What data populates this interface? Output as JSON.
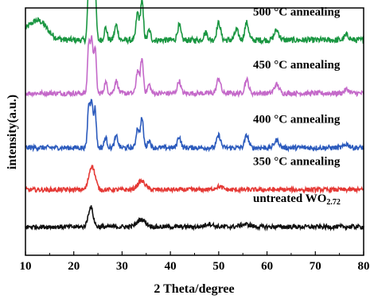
{
  "chart_data": {
    "type": "line",
    "title": "",
    "xlabel": "2 Theta/degree",
    "ylabel": "intensity(a.u.)",
    "xlim": [
      10,
      80
    ],
    "xticks": [
      "10",
      "20",
      "30",
      "40",
      "50",
      "60",
      "70",
      "80"
    ],
    "y_ticks_shown": false,
    "grid": false,
    "legend": "inline labels at right of each curve",
    "series": [
      {
        "name": "500 °C annealing",
        "label_main": "500 °C annealing",
        "label_sub": "",
        "color": "#1a9641",
        "baseline": 0.87,
        "noise": 0.012,
        "peaks": [
          [
            11.5,
            0.05,
            2.5
          ],
          [
            13.0,
            0.035,
            1.5
          ],
          [
            23.1,
            0.22,
            0.25
          ],
          [
            23.7,
            0.24,
            0.25
          ],
          [
            24.4,
            0.21,
            0.25
          ],
          [
            26.6,
            0.05,
            0.3
          ],
          [
            28.8,
            0.06,
            0.35
          ],
          [
            33.2,
            0.11,
            0.3
          ],
          [
            34.1,
            0.16,
            0.3
          ],
          [
            35.6,
            0.04,
            0.3
          ],
          [
            41.8,
            0.06,
            0.35
          ],
          [
            47.3,
            0.03,
            0.4
          ],
          [
            50.0,
            0.07,
            0.4
          ],
          [
            53.7,
            0.04,
            0.4
          ],
          [
            55.8,
            0.07,
            0.4
          ],
          [
            62.0,
            0.04,
            0.5
          ],
          [
            76.5,
            0.02,
            0.5
          ]
        ]
      },
      {
        "name": "450 °C annealing",
        "label_main": "450 °C annealing",
        "label_sub": "",
        "color": "#c469c9",
        "baseline": 0.655,
        "noise": 0.01,
        "peaks": [
          [
            23.1,
            0.2,
            0.25
          ],
          [
            23.7,
            0.22,
            0.25
          ],
          [
            24.4,
            0.19,
            0.25
          ],
          [
            26.6,
            0.045,
            0.3
          ],
          [
            28.8,
            0.05,
            0.35
          ],
          [
            33.2,
            0.09,
            0.3
          ],
          [
            34.1,
            0.14,
            0.3
          ],
          [
            35.6,
            0.035,
            0.3
          ],
          [
            41.8,
            0.05,
            0.35
          ],
          [
            50.0,
            0.06,
            0.4
          ],
          [
            55.8,
            0.055,
            0.4
          ],
          [
            62.0,
            0.035,
            0.5
          ],
          [
            76.5,
            0.015,
            0.5
          ]
        ]
      },
      {
        "name": "400 °C annealing",
        "label_main": "400 °C annealing",
        "label_sub": "",
        "color": "#2c5bbd",
        "baseline": 0.435,
        "noise": 0.01,
        "peaks": [
          [
            23.1,
            0.17,
            0.25
          ],
          [
            23.7,
            0.19,
            0.25
          ],
          [
            24.4,
            0.16,
            0.25
          ],
          [
            26.6,
            0.04,
            0.3
          ],
          [
            28.8,
            0.045,
            0.35
          ],
          [
            33.2,
            0.08,
            0.3
          ],
          [
            34.1,
            0.12,
            0.3
          ],
          [
            35.6,
            0.03,
            0.3
          ],
          [
            41.8,
            0.045,
            0.35
          ],
          [
            50.0,
            0.05,
            0.4
          ],
          [
            55.8,
            0.05,
            0.4
          ],
          [
            62.0,
            0.03,
            0.5
          ],
          [
            76.5,
            0.015,
            0.5
          ]
        ]
      },
      {
        "name": "350 °C annealing",
        "label_main": "350 °C annealing",
        "label_sub": "",
        "color": "#e53935",
        "baseline": 0.265,
        "noise": 0.009,
        "peaks": [
          [
            23.5,
            0.07,
            0.5
          ],
          [
            24.2,
            0.05,
            0.5
          ],
          [
            34.0,
            0.035,
            0.8
          ],
          [
            50.0,
            0.012,
            0.8
          ]
        ]
      },
      {
        "name": "untreated WO2.72",
        "label_main": "untreated WO",
        "label_sub": "2.72",
        "color": "#111111",
        "baseline": 0.115,
        "noise": 0.009,
        "peaks": [
          [
            23.5,
            0.08,
            0.5
          ],
          [
            34.0,
            0.03,
            0.9
          ],
          [
            48.0,
            0.012,
            0.8
          ],
          [
            55.5,
            0.01,
            1.0
          ]
        ]
      }
    ]
  }
}
